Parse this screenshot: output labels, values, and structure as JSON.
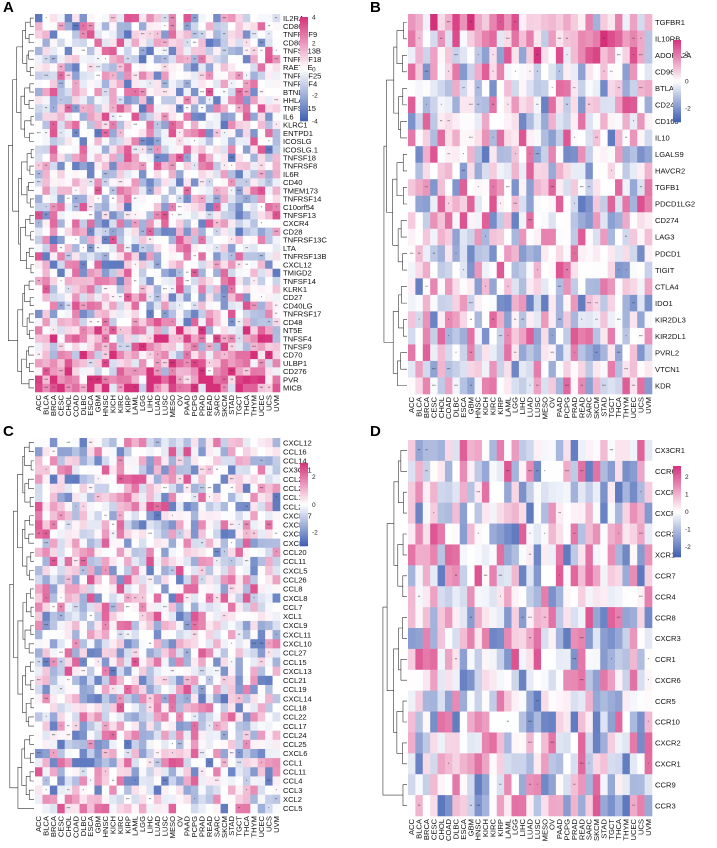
{
  "chart_data": [
    {
      "panel": "A",
      "type": "heatmap",
      "title": "",
      "legend_ticks": [
        "4",
        "2",
        "0",
        "-2",
        "-4"
      ],
      "legend_range": [
        -4,
        4
      ],
      "rows": [
        "IL2RA",
        "CD86",
        "TNFRSF9",
        "CD80",
        "TNFSF13B",
        "TNFRSF18",
        "RAET1E",
        "TNFRSF25",
        "TNFRSF4",
        "BTNL2",
        "HHLA2",
        "TNFSF15",
        "IL6",
        "KLRC1",
        "ENTPD1",
        "ICOSLG",
        "ICOSLG.1",
        "TNFSF18",
        "TNFRSF8",
        "IL6R",
        "CD40",
        "TMEM173",
        "TNFRSF14",
        "C10orf54",
        "TNFSF13",
        "CXCR4",
        "CD28",
        "TNFRSF13C",
        "LTA",
        "TNFRSF13B",
        "CXCL12",
        "TMIGD2",
        "TNFSF14",
        "KLRK1",
        "CD27",
        "CD40LG",
        "TNFRSF17",
        "CD48",
        "NT5E",
        "TNFSF4",
        "TNFSF9",
        "CD70",
        "ULBP1",
        "CD276",
        "PVR",
        "MICB"
      ],
      "columns": [
        "ACC",
        "BLCA",
        "BRCA",
        "CESC",
        "CHOL",
        "COAD",
        "DLBC",
        "ESCA",
        "GBM",
        "HNSC",
        "KICH",
        "KIRC",
        "KIRP",
        "LAML",
        "LGG",
        "LIHC",
        "LUAD",
        "LUSC",
        "MESO",
        "OV",
        "PAAD",
        "PCPG",
        "PRAD",
        "READ",
        "SARC",
        "SKCM",
        "STAD",
        "TGCT",
        "THCA",
        "THYM",
        "UCEC",
        "UCS",
        "UVM"
      ],
      "significance_marks": [
        "*",
        "**",
        "***"
      ]
    },
    {
      "panel": "B",
      "type": "heatmap",
      "title": "",
      "legend_ticks": [
        "2",
        "0",
        "-2"
      ],
      "legend_range": [
        -3,
        3
      ],
      "rows": [
        "TGFBR1",
        "IL10RB",
        "ADORA2A",
        "CD96",
        "BTLA",
        "CD244",
        "CD160",
        "IL10",
        "LGALS9",
        "HAVCR2",
        "TGFB1",
        "PDCD1LG2",
        "CD274",
        "LAG3",
        "PDCD1",
        "TIGIT",
        "CTLA4",
        "IDO1",
        "KIR2DL3",
        "KIR2DL1",
        "PVRL2",
        "VTCN1",
        "KDR"
      ],
      "columns": [
        "ACC",
        "BLCA",
        "BRCA",
        "CESC",
        "CHOL",
        "COAD",
        "DLBC",
        "ESCA",
        "GBM",
        "HNSC",
        "KICH",
        "KIRC",
        "KIRP",
        "LAML",
        "LGG",
        "LIHC",
        "LUAD",
        "LUSC",
        "MESO",
        "OV",
        "PAAD",
        "PCPG",
        "PRAD",
        "READ",
        "SARC",
        "SKCM",
        "STAD",
        "TGCT",
        "THCA",
        "THYM",
        "UCEC",
        "UCS",
        "UVM"
      ],
      "significance_marks": [
        "*",
        "**",
        "***"
      ]
    },
    {
      "panel": "C",
      "type": "heatmap",
      "title": "",
      "legend_ticks": [
        "2",
        "0",
        "-2"
      ],
      "legend_range": [
        -3,
        3
      ],
      "rows": [
        "CXCL12",
        "CCL16",
        "CCL14",
        "CX3CL1",
        "CCL23",
        "CCL2",
        "CCL13",
        "CCL28",
        "CXCL17",
        "CXCL3",
        "CXCL2",
        "CXCL1",
        "CCL20",
        "CCL11",
        "CXCL5",
        "CCL26",
        "CCL8",
        "CXCL8",
        "CCL7",
        "XCL1",
        "CXCL9",
        "CXCL11",
        "CXCL10",
        "CCL27",
        "CCL15",
        "CXCL13",
        "CCL21",
        "CCL19",
        "CXCL14",
        "CCL18",
        "CCL22",
        "CCL17",
        "CCL24",
        "CCL25",
        "CXCL6",
        "CCL1",
        "CCL11",
        "CCL4",
        "CCL3",
        "XCL2",
        "CCL5"
      ],
      "columns": [
        "ACC",
        "BLCA",
        "BRCA",
        "CESC",
        "CHOL",
        "COAD",
        "DLBC",
        "ESCA",
        "GBM",
        "HNSC",
        "KICH",
        "KIRC",
        "KIRP",
        "LAML",
        "LGG",
        "LIHC",
        "LUAD",
        "LUSC",
        "MESO",
        "OV",
        "PAAD",
        "PCPG",
        "PRAD",
        "READ",
        "SARC",
        "SKCM",
        "STAD",
        "TGCT",
        "THCA",
        "THYM",
        "UCEC",
        "UCS",
        "UVM"
      ],
      "significance_marks": [
        "*",
        "**",
        "***"
      ]
    },
    {
      "panel": "D",
      "type": "heatmap",
      "title": "",
      "legend_ticks": [
        "2",
        "1",
        "0",
        "-1",
        "-2"
      ],
      "legend_range": [
        -2.6,
        2.6
      ],
      "rows": [
        "CX3CR1",
        "CCR6",
        "CXCR5",
        "CXCR4",
        "CCR2",
        "XCR1",
        "CCR7",
        "CCR4",
        "CCR8",
        "CXCR3",
        "CCR1",
        "CXCR6",
        "CCR5",
        "CCR10",
        "CXCR2",
        "CXCR1",
        "CCR9",
        "CCR3"
      ],
      "columns": [
        "ACC",
        "BLCA",
        "BRCA",
        "CESC",
        "CHOL",
        "COAD",
        "DLBC",
        "ESCA",
        "GBM",
        "HNSC",
        "KICH",
        "KIRC",
        "KIRP",
        "LAML",
        "LGG",
        "LIHC",
        "LUAD",
        "LUSC",
        "MESO",
        "OV",
        "PAAD",
        "PCPG",
        "PRAD",
        "READ",
        "SARC",
        "SKCM",
        "STAD",
        "TGCT",
        "THCA",
        "THYM",
        "UCEC",
        "UCS",
        "UVM"
      ],
      "significance_marks": [
        "*",
        "**",
        "***"
      ]
    }
  ],
  "colors": {
    "high": "#d6307a",
    "mid": "#ffffff",
    "low": "#3f5fb3"
  }
}
